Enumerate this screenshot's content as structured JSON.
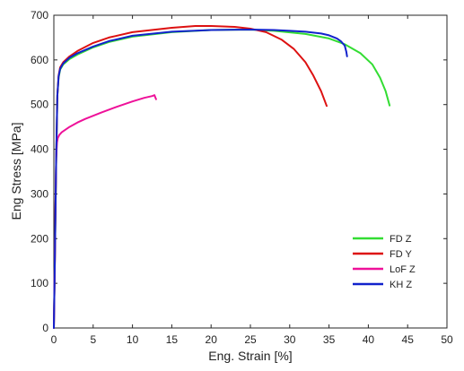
{
  "chart_data": {
    "type": "line",
    "title": "",
    "xlabel": "Eng. Strain [%]",
    "ylabel": "Eng Stress [MPa]",
    "xlim": [
      0,
      50
    ],
    "ylim": [
      0,
      700
    ],
    "xticks": [
      0,
      5,
      10,
      15,
      20,
      25,
      30,
      35,
      40,
      45,
      50
    ],
    "yticks": [
      0,
      100,
      200,
      300,
      400,
      500,
      600,
      700
    ],
    "grid": false,
    "legend_position": "bottom-right",
    "series": [
      {
        "name": "FD Z",
        "color": "#33dd33",
        "x": [
          0,
          0.15,
          0.3,
          0.45,
          0.6,
          0.8,
          1.2,
          2,
          3,
          5,
          7,
          10,
          15,
          20,
          25,
          28,
          32,
          35,
          37,
          39,
          40.5,
          41.5,
          42.2,
          42.7
        ],
        "y": [
          0,
          180,
          380,
          520,
          560,
          578,
          590,
          602,
          612,
          628,
          640,
          652,
          662,
          667,
          668,
          665,
          658,
          648,
          635,
          615,
          590,
          560,
          530,
          498
        ]
      },
      {
        "name": "FD Y",
        "color": "#dd1111",
        "x": [
          0,
          0.15,
          0.3,
          0.45,
          0.6,
          0.8,
          1.2,
          2,
          3,
          5,
          7,
          10,
          15,
          18,
          20,
          23,
          25,
          27,
          29,
          30.5,
          32,
          33,
          34,
          34.7
        ],
        "y": [
          0,
          180,
          380,
          520,
          565,
          583,
          595,
          608,
          620,
          638,
          650,
          662,
          672,
          676,
          676,
          674,
          670,
          662,
          645,
          625,
          595,
          565,
          530,
          497
        ]
      },
      {
        "name": "LoF Z",
        "color": "#ee1199",
        "x": [
          0,
          0.1,
          0.2,
          0.3,
          0.4,
          0.5,
          0.7,
          1,
          2,
          3,
          4,
          6,
          8,
          10,
          11.5,
          12.5,
          12.8,
          13
        ],
        "y": [
          0,
          120,
          280,
          380,
          415,
          425,
          432,
          438,
          450,
          460,
          468,
          482,
          495,
          507,
          515,
          519,
          521,
          512
        ]
      },
      {
        "name": "KH Z",
        "color": "#1122cc",
        "x": [
          0,
          0.15,
          0.3,
          0.45,
          0.6,
          0.8,
          1.2,
          2,
          3,
          5,
          7,
          10,
          15,
          20,
          25,
          28,
          30,
          32,
          34,
          35,
          36,
          36.5,
          37,
          37.2,
          37.3
        ],
        "y": [
          0,
          180,
          380,
          520,
          563,
          580,
          592,
          605,
          615,
          630,
          642,
          654,
          663,
          667,
          668,
          667,
          665,
          663,
          659,
          655,
          648,
          642,
          632,
          618,
          608
        ]
      }
    ]
  }
}
